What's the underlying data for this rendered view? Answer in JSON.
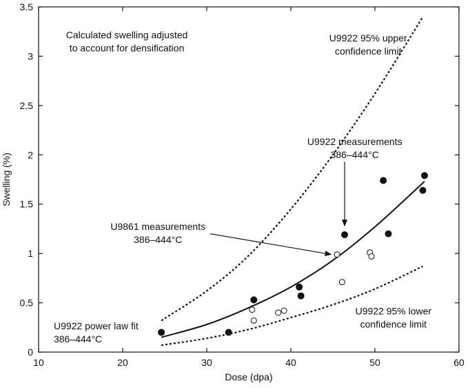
{
  "chart_data": {
    "type": "scatter",
    "title": "",
    "xlabel": "Dose (dpa)",
    "ylabel": "Swelling (%)",
    "xlim": [
      10,
      60
    ],
    "ylim": [
      0,
      3.5
    ],
    "grid": false,
    "x_ticks": [
      "10",
      "20",
      "30",
      "40",
      "50",
      "60"
    ],
    "y_ticks": [
      "0",
      "0.5",
      "1",
      "1.5",
      "2",
      "2.5",
      "3",
      "3.5"
    ],
    "series": [
      {
        "name": "U9922 measurements",
        "marker": "filled-circle",
        "points": [
          {
            "x": 24.6,
            "y": 0.2
          },
          {
            "x": 32.6,
            "y": 0.2
          },
          {
            "x": 35.6,
            "y": 0.53
          },
          {
            "x": 41.0,
            "y": 0.66
          },
          {
            "x": 41.2,
            "y": 0.57
          },
          {
            "x": 46.4,
            "y": 1.19
          },
          {
            "x": 51.0,
            "y": 1.74
          },
          {
            "x": 51.6,
            "y": 1.2
          },
          {
            "x": 55.7,
            "y": 1.64
          },
          {
            "x": 55.9,
            "y": 1.79
          }
        ]
      },
      {
        "name": "U9861 measurements",
        "marker": "open-circle",
        "points": [
          {
            "x": 35.4,
            "y": 0.43
          },
          {
            "x": 35.6,
            "y": 0.32
          },
          {
            "x": 38.5,
            "y": 0.4
          },
          {
            "x": 39.2,
            "y": 0.42
          },
          {
            "x": 45.5,
            "y": 0.99
          },
          {
            "x": 46.1,
            "y": 0.71
          },
          {
            "x": 49.4,
            "y": 1.01
          },
          {
            "x": 49.6,
            "y": 0.97
          }
        ]
      },
      {
        "name": "U9922 power law fit",
        "style": "solid",
        "points": [
          {
            "x": 24.6,
            "y": 0.15
          },
          {
            "x": 30,
            "y": 0.28
          },
          {
            "x": 35,
            "y": 0.45
          },
          {
            "x": 40,
            "y": 0.66
          },
          {
            "x": 45,
            "y": 0.93
          },
          {
            "x": 50,
            "y": 1.27
          },
          {
            "x": 55.9,
            "y": 1.73
          }
        ]
      },
      {
        "name": "U9922 95% upper confidence limit",
        "style": "dotted",
        "points": [
          {
            "x": 24.6,
            "y": 0.32
          },
          {
            "x": 30,
            "y": 0.62
          },
          {
            "x": 35,
            "y": 0.98
          },
          {
            "x": 40,
            "y": 1.45
          },
          {
            "x": 45,
            "y": 2.0
          },
          {
            "x": 50,
            "y": 2.62
          },
          {
            "x": 55.7,
            "y": 3.4
          }
        ]
      },
      {
        "name": "U9922 95% lower confidence limit",
        "style": "dotted",
        "points": [
          {
            "x": 24.6,
            "y": 0.07
          },
          {
            "x": 30,
            "y": 0.14
          },
          {
            "x": 35,
            "y": 0.23
          },
          {
            "x": 40,
            "y": 0.35
          },
          {
            "x": 45,
            "y": 0.48
          },
          {
            "x": 50,
            "y": 0.64
          },
          {
            "x": 55.7,
            "y": 0.87
          }
        ]
      }
    ],
    "annotations": [
      {
        "id": "densification-note",
        "lines": [
          "Calculated swelling adjusted",
          "to account for densification"
        ],
        "x": 20.5,
        "y": 3.18,
        "anchor": "middle"
      },
      {
        "id": "upper-limit-label",
        "lines": [
          "U9922 95% upper",
          "confidence limit"
        ],
        "x": 49.2,
        "y": 3.15,
        "anchor": "middle"
      },
      {
        "id": "u9922-measurements-label",
        "lines": [
          "U9922 measurements",
          "386–444°C"
        ],
        "x": 47.6,
        "y": 2.1,
        "anchor": "middle"
      },
      {
        "id": "u9861-measurements-label",
        "lines": [
          "U9861 measurements",
          "386–444°C"
        ],
        "x": 24.2,
        "y": 1.24,
        "anchor": "middle"
      },
      {
        "id": "lower-limit-label",
        "lines": [
          "U9922 95% lower",
          "confidence limit"
        ],
        "x": 52.2,
        "y": 0.38,
        "anchor": "middle"
      },
      {
        "id": "power-law-label",
        "lines": [
          "U9922 power law fit",
          "386–444°C"
        ],
        "x": 11.8,
        "y": 0.23,
        "anchor": "start"
      }
    ],
    "arrows": [
      {
        "id": "u9922-arrow",
        "from": {
          "x": 46.4,
          "y": 1.93
        },
        "to": {
          "x": 46.4,
          "y": 1.28
        }
      },
      {
        "id": "u9861-arrow",
        "from": {
          "x": 30.4,
          "y": 1.2
        },
        "to": {
          "x": 44.8,
          "y": 0.99
        }
      }
    ]
  }
}
